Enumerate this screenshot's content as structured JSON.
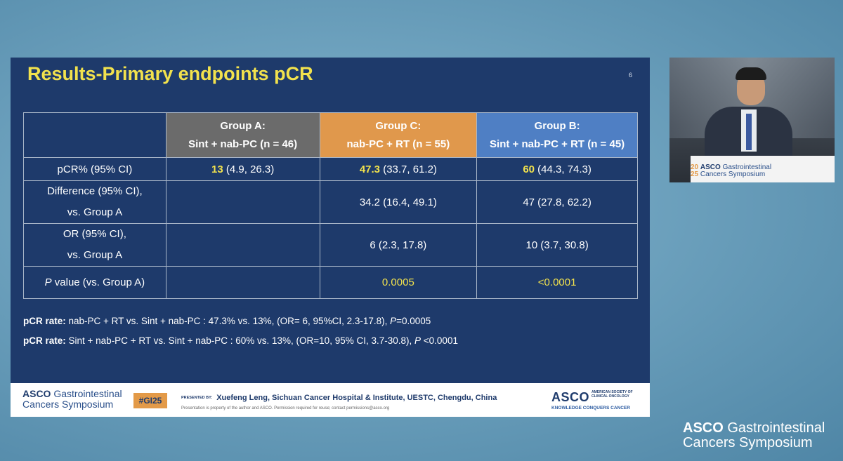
{
  "slide": {
    "title": "Results-Primary endpoints pCR",
    "page_number": "6",
    "table": {
      "headers": [
        {
          "line1": "Group A:",
          "line2": "Sint + nab-PC  (n = 46)"
        },
        {
          "line1": "Group C:",
          "line2": "nab-PC + RT  (n = 55)"
        },
        {
          "line1": "Group B:",
          "line2": "Sint + nab-PC + RT (n = 45)"
        }
      ],
      "rows": {
        "pcr": {
          "label": "pCR% (95% CI)",
          "a_main": "13",
          "a_ci": " (4.9, 26.3)",
          "c_main": "47.3",
          "c_ci": " (33.7, 61.2)",
          "b_main": "60",
          "b_ci": " (44.3, 74.3)"
        },
        "diff": {
          "label1": "Difference (95% CI),",
          "label2": "vs. Group A",
          "a": "",
          "c": "34.2 (16.4, 49.1)",
          "b": "47 (27.8, 62.2)"
        },
        "or": {
          "label1": "OR (95% CI),",
          "label2": "vs. Group A",
          "a": "",
          "c": "6 (2.3, 17.8)",
          "b": "10 (3.7, 30.8)"
        },
        "pval": {
          "label_p": "P",
          "label_rest": " value (vs. Group A)",
          "a": "",
          "c": "0.0005",
          "b": "<0.0001"
        }
      }
    },
    "notes": [
      {
        "bold": "pCR rate:",
        "text": " nab-PC + RT vs. Sint + nab-PC :  47.3% vs. 13%, (OR= 6, 95%CI, 2.3-17.8), ",
        "p": "P",
        "tail": "=0.0005"
      },
      {
        "bold": "pCR rate:",
        "text": " Sint + nab-PC + RT vs. Sint + nab-PC :  60% vs. 13%, (OR=10, 95% CI, 3.7-30.8), ",
        "p": "P",
        "tail": " <0.0001"
      }
    ],
    "footer": {
      "logo_asco": "ASCO",
      "logo_rest": " Gastrointestinal",
      "logo_line2": "Cancers Symposium",
      "hashtag": "#GI25",
      "presented_by": "PRESENTED BY:",
      "presenter": "Xuefeng Leng,  Sichuan Cancer Hospital & Institute, UESTC, Chengdu, China",
      "disclaimer": "Presentation is property of the author and ASCO. Permission required for reuse; contact permissions@asco.org",
      "asco_mark": "ASCO",
      "society": "AMERICAN SOCIETY OF CLINICAL ONCOLOGY",
      "tagline": "KNOWLEDGE CONQUERS CANCER"
    }
  },
  "video": {
    "podium_year_top": "20",
    "podium_year_bottom": "25",
    "podium_asco": "ASCO",
    "podium_line1": " Gastrointestinal",
    "podium_line2": "Cancers Symposium"
  },
  "corner": {
    "asco": "ASCO",
    "line1": " Gastrointestinal",
    "line2": "Cancers Symposium"
  },
  "colors": {
    "slide_bg": "#1e3a6b",
    "title": "#f2e24d",
    "group_a": "#6b6b6b",
    "group_c": "#e0984c",
    "group_b": "#4f7fc4"
  }
}
